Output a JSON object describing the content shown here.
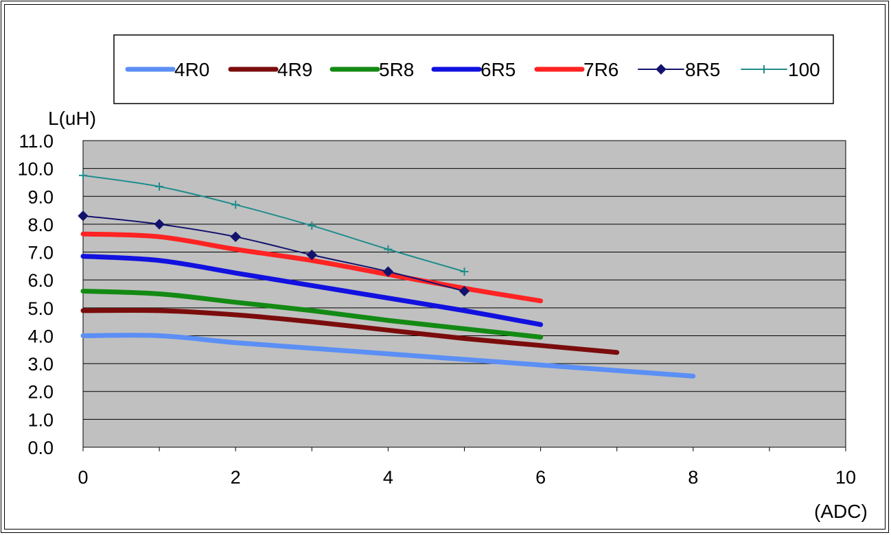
{
  "chart_data": {
    "type": "line",
    "title": "",
    "xlabel": "(ADC)",
    "ylabel": "L(uH)",
    "xlim": [
      0,
      10
    ],
    "ylim": [
      0,
      11
    ],
    "x_ticks": [
      "0",
      "2",
      "4",
      "6",
      "8",
      "10"
    ],
    "y_ticks": [
      "0.0",
      "1.0",
      "2.0",
      "3.0",
      "4.0",
      "5.0",
      "6.0",
      "7.0",
      "8.0",
      "9.0",
      "10.0",
      "11.0"
    ],
    "grid": "horizontal",
    "legend_position": "top",
    "plot_background": "#c0c0c0",
    "series": [
      {
        "name": "4R0",
        "color": "#5b8ff5",
        "style": "thick",
        "marker": "none",
        "x": [
          0,
          1,
          2,
          3,
          4,
          5,
          6,
          7,
          8
        ],
        "y": [
          4.0,
          4.0,
          3.75,
          3.55,
          3.35,
          3.15,
          2.95,
          2.75,
          2.55
        ]
      },
      {
        "name": "4R9",
        "color": "#7b0c0c",
        "style": "thick",
        "marker": "none",
        "x": [
          0,
          1,
          2,
          3,
          4,
          5,
          6,
          7
        ],
        "y": [
          4.9,
          4.9,
          4.75,
          4.5,
          4.2,
          3.9,
          3.65,
          3.4
        ]
      },
      {
        "name": "5R8",
        "color": "#138a13",
        "style": "thick",
        "marker": "none",
        "x": [
          0,
          1,
          2,
          3,
          4,
          5,
          6
        ],
        "y": [
          5.6,
          5.5,
          5.2,
          4.9,
          4.55,
          4.25,
          3.95
        ]
      },
      {
        "name": "6R5",
        "color": "#1111e0",
        "style": "thick",
        "marker": "none",
        "x": [
          0,
          1,
          2,
          3,
          4,
          5,
          6
        ],
        "y": [
          6.85,
          6.7,
          6.25,
          5.8,
          5.35,
          4.9,
          4.4
        ]
      },
      {
        "name": "7R6",
        "color": "#ff2323",
        "style": "thick",
        "marker": "none",
        "x": [
          0,
          1,
          2,
          3,
          4,
          5,
          6
        ],
        "y": [
          7.65,
          7.55,
          7.1,
          6.7,
          6.2,
          5.7,
          5.25
        ]
      },
      {
        "name": "8R5",
        "color": "#13136e",
        "style": "thin",
        "marker": "diamond",
        "x": [
          0,
          1,
          2,
          3,
          4,
          5
        ],
        "y": [
          8.3,
          8.0,
          7.55,
          6.9,
          6.3,
          5.6
        ]
      },
      {
        "name": "100",
        "color": "#1e8c8c",
        "style": "thin",
        "marker": "plus",
        "x": [
          0,
          1,
          2,
          3,
          4,
          5
        ],
        "y": [
          9.75,
          9.35,
          8.7,
          7.95,
          7.1,
          6.3
        ]
      }
    ]
  }
}
